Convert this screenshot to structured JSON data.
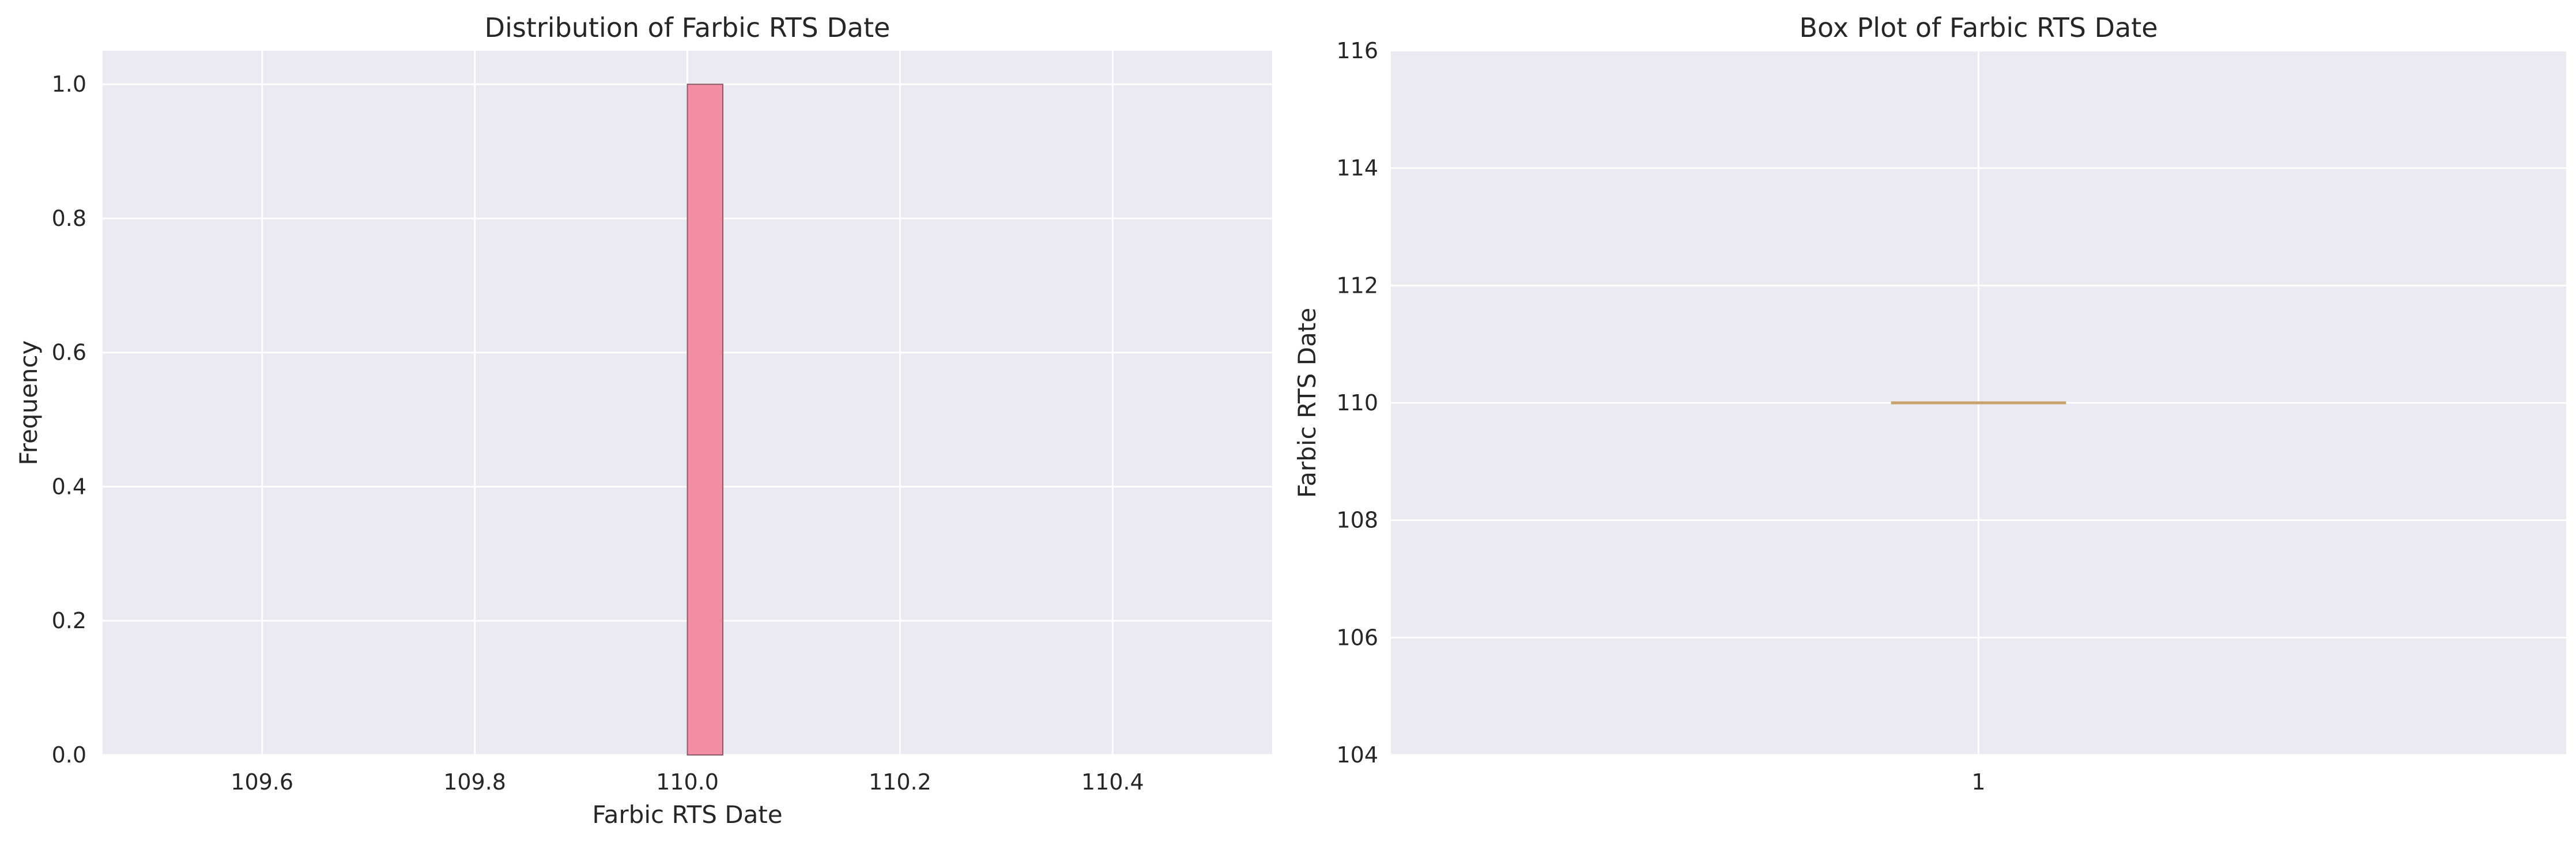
{
  "chart_data": [
    {
      "type": "bar",
      "title": "Distribution of Farbic RTS Date",
      "xlabel": "Farbic RTS Date",
      "ylabel": "Frequency",
      "xlim": [
        109.45,
        110.55
      ],
      "ylim": [
        0.0,
        1.05
      ],
      "xticks": [
        "109.6",
        "109.8",
        "110.0",
        "110.2",
        "110.4"
      ],
      "xtick_values": [
        109.6,
        109.8,
        110.0,
        110.2,
        110.4
      ],
      "yticks": [
        "0.0",
        "0.2",
        "0.4",
        "0.6",
        "0.8",
        "1.0"
      ],
      "ytick_values": [
        0.0,
        0.2,
        0.4,
        0.6,
        0.8,
        1.0
      ],
      "bins": [
        {
          "x0": 110.0,
          "x1": 110.0333,
          "value": 1
        }
      ],
      "grid": true,
      "colors": {
        "background": "#eaeaf2",
        "bar": "#f28ea4",
        "bar_edge": "#8c5a66",
        "grid": "#ffffff"
      }
    },
    {
      "type": "box",
      "title": "Box Plot of Farbic RTS Date",
      "xlabel": "",
      "ylabel": "Farbic RTS Date",
      "categories": [
        "1"
      ],
      "ylim": [
        104,
        116
      ],
      "yticks": [
        "104",
        "106",
        "108",
        "110",
        "112",
        "114",
        "116"
      ],
      "ytick_values": [
        104,
        106,
        108,
        110,
        112,
        114,
        116
      ],
      "boxes": [
        {
          "category": "1",
          "min": 110,
          "q1": 110,
          "median": 110,
          "q3": 110,
          "max": 110
        }
      ],
      "grid": true,
      "colors": {
        "background": "#eaeaf2",
        "median": "#c9a36b",
        "box": "#8c8c8c",
        "grid": "#ffffff"
      }
    }
  ]
}
